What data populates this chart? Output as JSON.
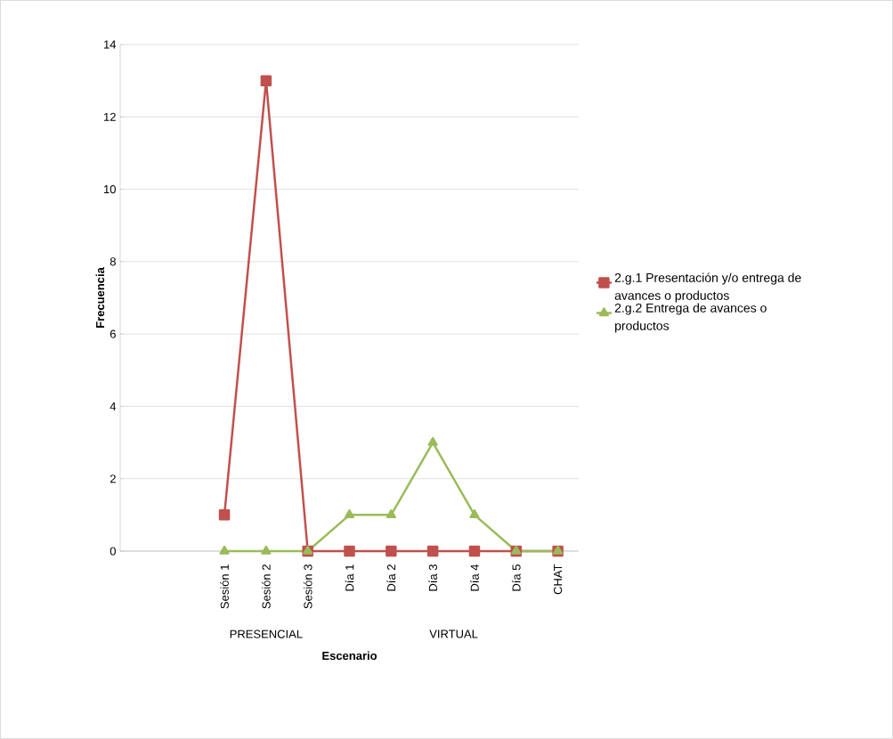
{
  "chart_data": {
    "type": "line",
    "xlabel": "Escenario",
    "ylabel": "Frecuencia",
    "categories": [
      null,
      null,
      "Sesión 1",
      "Sesión 2",
      "Sesión 3",
      "Día 1",
      "Día 2",
      "Día 3",
      "Día 4",
      "Día 5",
      "CHAT"
    ],
    "series": [
      {
        "name": "2.g.1 Presentación y/o entrega de avances o productos",
        "color": "#c0504d",
        "marker": "square",
        "values": [
          null,
          null,
          1,
          13,
          0,
          0,
          0,
          0,
          0,
          0,
          0
        ]
      },
      {
        "name": "2.g.2 Entrega de avances o productos",
        "color": "#9bbb59",
        "marker": "triangle",
        "values": [
          null,
          null,
          0,
          0,
          0,
          1,
          1,
          3,
          1,
          0,
          0
        ]
      }
    ],
    "ylim": [
      0,
      14
    ],
    "yticks": [
      0,
      2,
      4,
      6,
      8,
      10,
      12,
      14
    ],
    "grid": "y",
    "legend": "right",
    "annotations": [
      "PRESENCIAL",
      "VIRTUAL"
    ]
  }
}
